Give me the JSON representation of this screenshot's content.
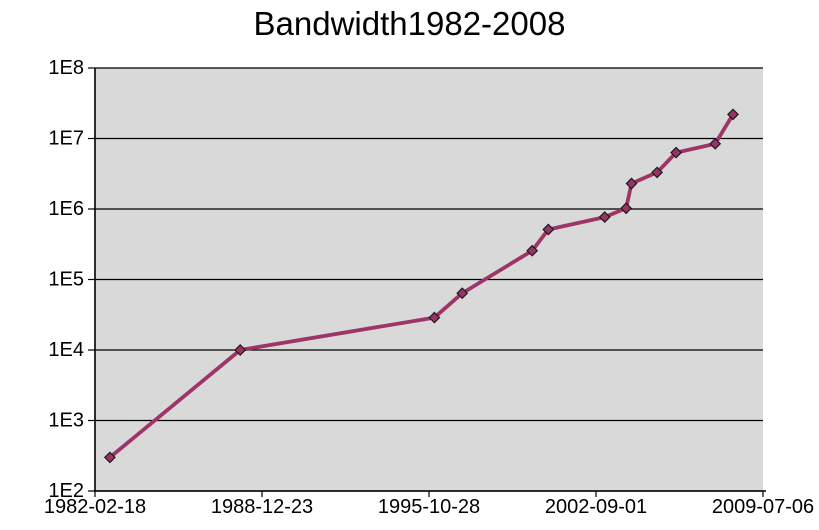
{
  "chart_data": {
    "type": "line",
    "title": "Bandwidth1982-2008",
    "xlabel": "",
    "ylabel": "",
    "legend": "none",
    "y_scale": "log10",
    "grid": "horizontal decade gridlines only",
    "plot_bg_color": "#d9d9d9",
    "axis_color": "#000000",
    "line_color": "#9e3568",
    "marker_shape": "diamond",
    "marker_color": "#993366",
    "marker_outline_color": "#1b1b1b",
    "x_tick_labels": [
      "1982-02-18",
      "1988-12-23",
      "1995-10-28",
      "2002-09-01",
      "2009-07-06"
    ],
    "y_tick_labels": [
      "1E8",
      "1E7",
      "1E6",
      "1E5",
      "1E4",
      "1E3",
      "1E2"
    ],
    "x_range_years": [
      1982.13,
      2009.51
    ],
    "y_log_range_exponents": [
      2,
      8
    ],
    "points": [
      {
        "x_year": 1982.74,
        "bps": 300
      },
      {
        "x_year": 1988.08,
        "bps": 10000
      },
      {
        "x_year": 1996.04,
        "bps": 28800
      },
      {
        "x_year": 1997.18,
        "bps": 64000
      },
      {
        "x_year": 2000.05,
        "bps": 256000
      },
      {
        "x_year": 2000.71,
        "bps": 512000
      },
      {
        "x_year": 2003.02,
        "bps": 768000
      },
      {
        "x_year": 2003.9,
        "bps": 1024000
      },
      {
        "x_year": 2004.12,
        "bps": 2300000
      },
      {
        "x_year": 2005.17,
        "bps": 3300000
      },
      {
        "x_year": 2005.95,
        "bps": 6300000
      },
      {
        "x_year": 2007.55,
        "bps": 8400000
      },
      {
        "x_year": 2008.28,
        "bps": 22000000
      }
    ]
  }
}
